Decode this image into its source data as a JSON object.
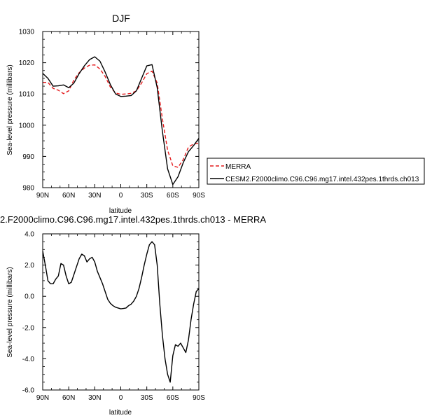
{
  "chart_data": [
    {
      "type": "line",
      "title": "DJF",
      "xlabel": "latitude",
      "ylabel": "Sea-level pressure (millibars)",
      "xlim": [
        -90,
        90
      ],
      "ylim": [
        980,
        1030
      ],
      "xticks": [
        -90,
        -60,
        -30,
        0,
        30,
        60,
        90
      ],
      "xtick_labels": [
        "90N",
        "60N",
        "30N",
        "0",
        "30S",
        "60S",
        "90S"
      ],
      "yticks": [
        980,
        990,
        1000,
        1010,
        1020,
        1030
      ],
      "ytick_labels": [
        "980",
        "990",
        "1000",
        "1010",
        "1020",
        "1030"
      ],
      "grid": false,
      "legend": "right, outside plot",
      "series": [
        {
          "name": "MERRA",
          "color": "#e41a1c",
          "dash": "dashed",
          "x": [
            -90,
            -84,
            -78,
            -72,
            -66,
            -60,
            -54,
            -48,
            -42,
            -36,
            -30,
            -24,
            -18,
            -12,
            -6,
            0,
            6,
            12,
            18,
            24,
            30,
            36,
            42,
            48,
            54,
            60,
            66,
            72,
            78,
            84,
            90
          ],
          "y": [
            1013.7,
            1013.7,
            1011.8,
            1011.2,
            1010.1,
            1011.0,
            1014.5,
            1016.8,
            1018.3,
            1019.2,
            1019.3,
            1018.0,
            1015.6,
            1012.2,
            1010.3,
            1009.9,
            1010.0,
            1010.2,
            1011.0,
            1013.5,
            1016.5,
            1017.3,
            1013.5,
            1002.0,
            992.0,
            987.0,
            986.5,
            989.0,
            993.0,
            994.0,
            994.3
          ]
        },
        {
          "name": "CESM2.F2000climo.C96.C96.mg17.intel.432pes.1thrds.ch013",
          "color": "#000000",
          "dash": "solid",
          "x": [
            -90,
            -84,
            -78,
            -72,
            -66,
            -60,
            -54,
            -48,
            -42,
            -36,
            -30,
            -24,
            -18,
            -12,
            -6,
            0,
            6,
            12,
            18,
            24,
            30,
            36,
            42,
            48,
            54,
            60,
            66,
            72,
            78,
            84,
            90
          ],
          "y": [
            1016.6,
            1015.0,
            1012.5,
            1012.6,
            1012.9,
            1012.0,
            1013.5,
            1016.5,
            1019.0,
            1021.0,
            1021.9,
            1020.5,
            1017.0,
            1013.0,
            1010.0,
            1009.2,
            1009.3,
            1009.5,
            1011.0,
            1015.0,
            1019.0,
            1019.4,
            1012.0,
            998.0,
            986.0,
            981.0,
            983.5,
            988.0,
            991.5,
            993.5,
            995.8
          ]
        }
      ]
    },
    {
      "type": "line",
      "title": "2.F2000climo.C96.C96.mg17.intel.432pes.1thrds.ch013 - MERRA",
      "xlabel": "latitude",
      "ylabel": "Sea-level pressure (millibars)",
      "xlim": [
        -90,
        90
      ],
      "ylim": [
        -6,
        4
      ],
      "xticks": [
        -90,
        -60,
        -30,
        0,
        30,
        60,
        90
      ],
      "xtick_labels": [
        "90N",
        "60N",
        "30N",
        "0",
        "30S",
        "60S",
        "90S"
      ],
      "yticks": [
        -6,
        -4,
        -2,
        0,
        2,
        4
      ],
      "ytick_labels": [
        "-6.0",
        "-4.0",
        "-2.0",
        "0.0",
        "2.0",
        "4.0"
      ],
      "grid": false,
      "series": [
        {
          "color": "#000000",
          "dash": "solid",
          "x": [
            -90,
            -87,
            -84,
            -81,
            -78,
            -75,
            -72,
            -69,
            -66,
            -63,
            -60,
            -57,
            -54,
            -51,
            -48,
            -45,
            -42,
            -39,
            -36,
            -33,
            -30,
            -27,
            -24,
            -21,
            -18,
            -15,
            -12,
            -9,
            -6,
            -3,
            0,
            3,
            6,
            9,
            12,
            15,
            18,
            21,
            24,
            27,
            30,
            33,
            36,
            39,
            42,
            45,
            48,
            51,
            54,
            57,
            60,
            63,
            66,
            69,
            72,
            75,
            78,
            81,
            84,
            87,
            90
          ],
          "y": [
            2.9,
            2.0,
            1.0,
            0.8,
            0.8,
            1.1,
            1.3,
            2.1,
            2.0,
            1.3,
            0.8,
            0.9,
            1.4,
            1.9,
            2.4,
            2.7,
            2.6,
            2.2,
            2.4,
            2.5,
            2.2,
            1.6,
            1.2,
            0.8,
            0.3,
            -0.2,
            -0.45,
            -0.6,
            -0.7,
            -0.75,
            -0.8,
            -0.78,
            -0.75,
            -0.6,
            -0.5,
            -0.3,
            0.0,
            0.5,
            1.2,
            2.0,
            2.7,
            3.3,
            3.5,
            3.3,
            2.0,
            -0.5,
            -2.5,
            -4.0,
            -5.0,
            -5.5,
            -3.8,
            -3.1,
            -3.2,
            -3.0,
            -3.3,
            -3.6,
            -2.8,
            -1.5,
            -0.5,
            0.3,
            0.5
          ]
        }
      ]
    }
  ]
}
